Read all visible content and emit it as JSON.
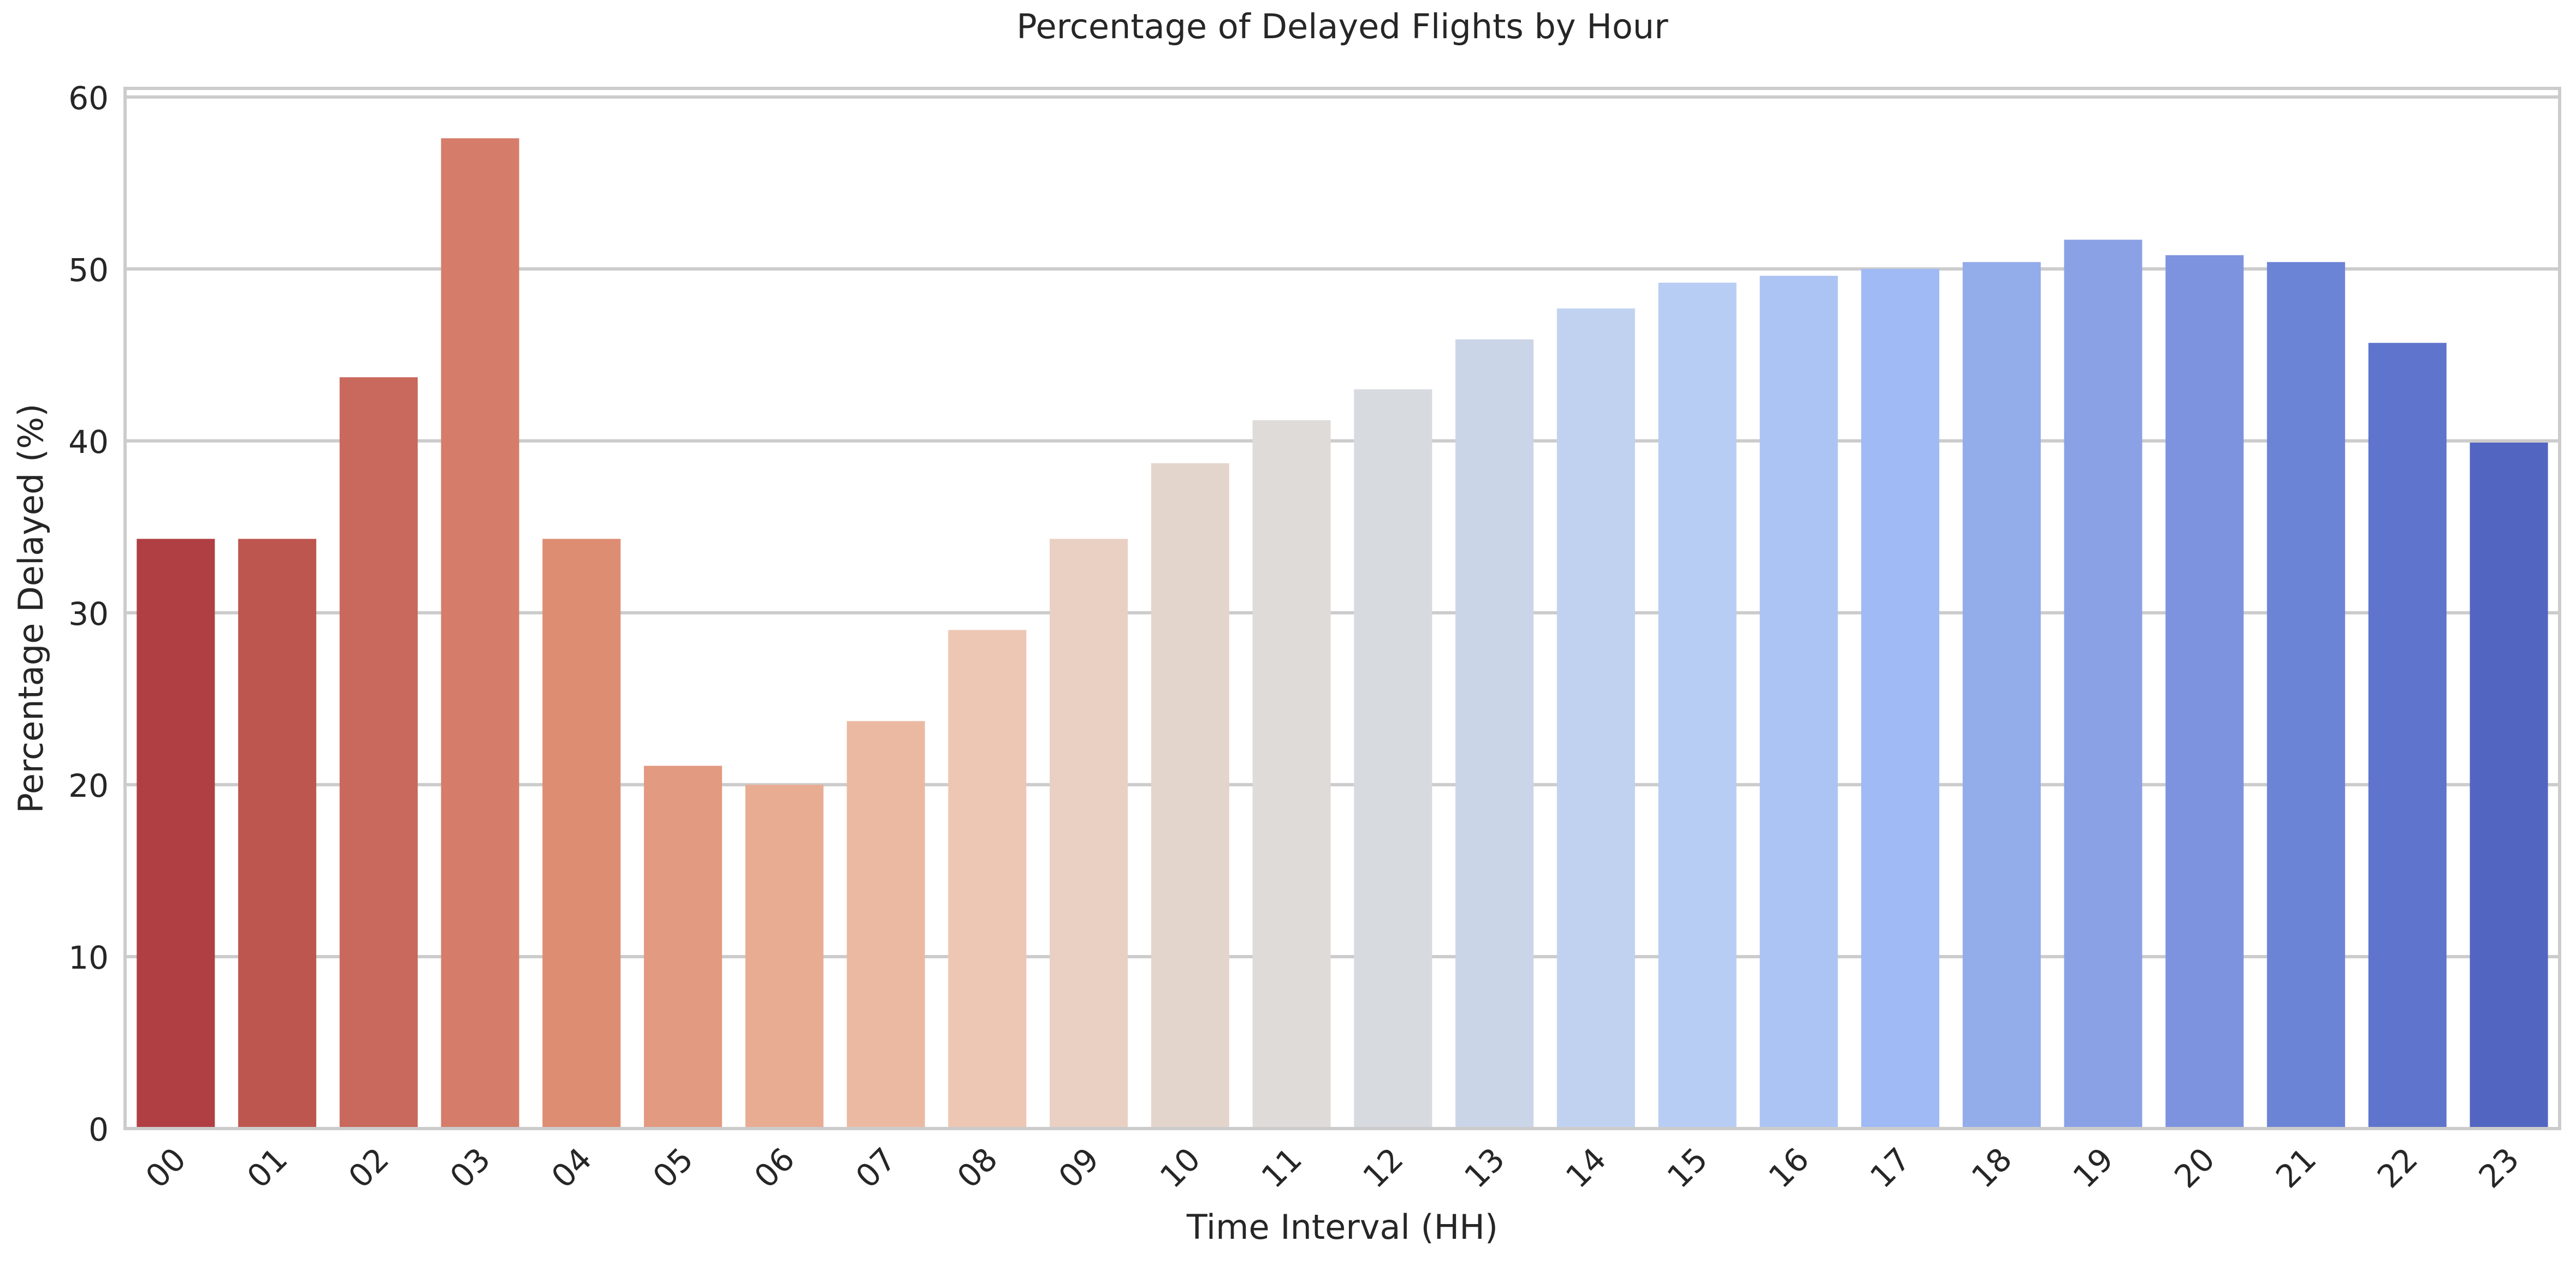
{
  "chart_data": {
    "type": "bar",
    "title": "Percentage of Delayed Flights by Hour",
    "xlabel": "Time Interval (HH)",
    "ylabel": "Percentage Delayed (%)",
    "ylim": [
      0,
      60.5
    ],
    "yticks": [
      0,
      10,
      20,
      30,
      40,
      50,
      60
    ],
    "grid": "horizontal",
    "categories": [
      "00",
      "01",
      "02",
      "03",
      "04",
      "05",
      "06",
      "07",
      "08",
      "09",
      "10",
      "11",
      "12",
      "13",
      "14",
      "15",
      "16",
      "17",
      "18",
      "19",
      "20",
      "21",
      "22",
      "23"
    ],
    "values": [
      34.3,
      34.3,
      43.7,
      57.6,
      34.3,
      21.1,
      20.0,
      23.7,
      29.0,
      34.3,
      38.7,
      41.2,
      43.0,
      45.9,
      47.7,
      49.2,
      49.6,
      50.0,
      50.4,
      51.7,
      50.8,
      50.4,
      45.7,
      39.9
    ],
    "colors": [
      "#b03f44",
      "#be5650",
      "#c9685c",
      "#d57d6a",
      "#dd8d72",
      "#e29a80",
      "#e8ac93",
      "#ebb9a2",
      "#edc6b4",
      "#e9d0c3",
      "#e4d5cc",
      "#dfdbd8",
      "#d7dadf",
      "#cbd5e8",
      "#c1d2f1",
      "#b8cdf4",
      "#acc4f3",
      "#9fbaf5",
      "#93acea",
      "#8aa1e6",
      "#7d93df",
      "#6c84d6",
      "#5f74cc",
      "#5265c1"
    ]
  }
}
